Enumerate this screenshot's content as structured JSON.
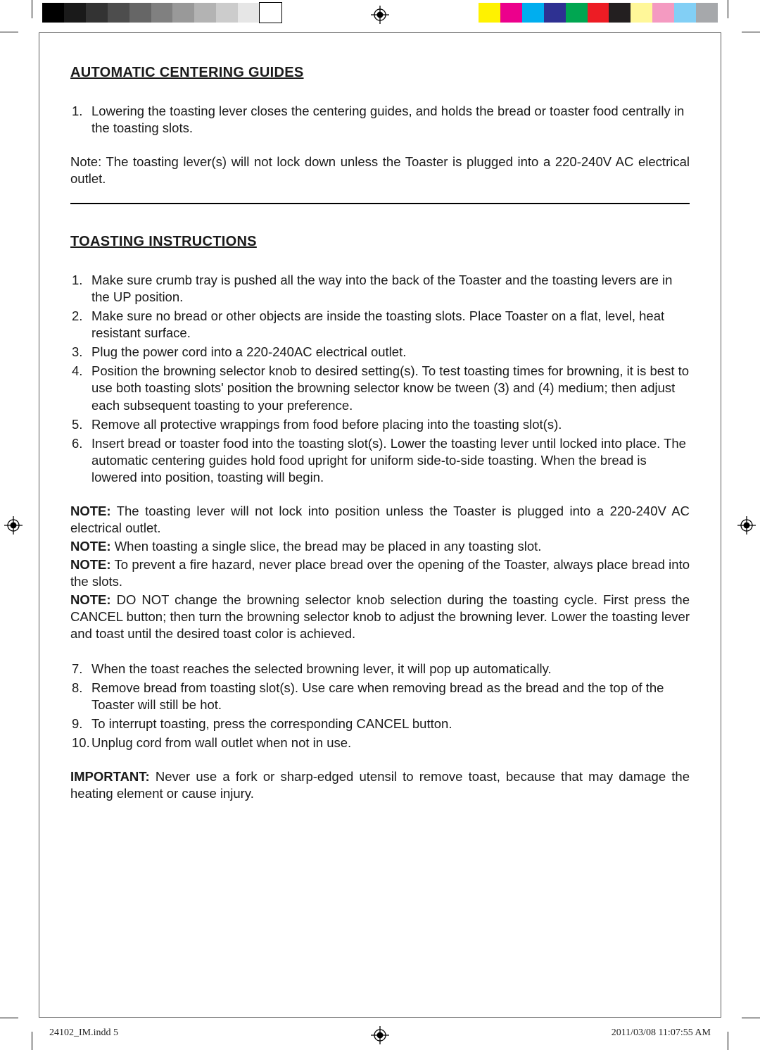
{
  "print_marks": {
    "grayscale_swatches": [
      "#000000",
      "#1a1a1a",
      "#333333",
      "#4d4d4d",
      "#666666",
      "#808080",
      "#999999",
      "#b3b3b3",
      "#cccccc",
      "#e6e6e6",
      "#ffffff"
    ],
    "grayscale_border": "#000000",
    "color_swatches": [
      "#fff200",
      "#ec008c",
      "#00aeef",
      "#2e3192",
      "#00a651",
      "#ed1c24",
      "#231f20",
      "#fff799",
      "#f49ac1",
      "#82cff5",
      "#a6a8ab"
    ]
  },
  "section1": {
    "title": "AUTOMATIC CENTERING GUIDES",
    "item1": "Lowering the toasting lever closes the centering guides, and holds the bread or toaster food centrally in the toasting slots.",
    "note": "Note: The toasting lever(s) will not lock down unless the Toaster is plugged into a 220-240V AC electrical outlet."
  },
  "section2": {
    "title": "TOASTING INSTRUCTIONS",
    "item1": "Make sure crumb tray is pushed all the way into the back of the Toaster and the toasting levers are in the UP position.",
    "item2": "Make sure no bread or other objects are inside the toasting slots. Place Toaster on a flat, level, heat resistant surface.",
    "item3": "Plug the power cord into a 220-240AC electrical outlet.",
    "item4": "Position the browning selector knob to desired setting(s). To test toasting times for browning, it is best to use both toasting slots' position the browning selector know be tween (3) and (4) medium; then adjust each subsequent toasting to your preference.",
    "item5": "Remove all protective wrappings from food before placing into the toasting slot(s).",
    "item6": "Insert bread or toaster food into the toasting slot(s). Lower the toasting lever until locked into place. The automatic centering guides hold food upright for uniform side-to-side toasting. When the bread is lowered into position, toasting will begin.",
    "note_label": "NOTE:",
    "note1": " The toasting lever will not lock into position unless the Toaster is plugged into a 220-240V AC electrical outlet.",
    "note2": " When toasting a single slice, the bread may be placed in any toasting slot.",
    "note3": " To prevent a fire hazard, never place bread over the opening of the Toaster, always place bread into the slots.",
    "note4": " DO NOT change the browning selector knob selection during the toasting cycle. First press the CANCEL button; then turn the browning selector knob to adjust the browning lever. Lower the toasting lever and toast until the desired toast color is achieved.",
    "item7": "When the toast reaches the selected browning lever, it will pop up automatically.",
    "item8": "Remove bread from toasting slot(s). Use care when removing bread as the bread and the top of the Toaster will still be hot.",
    "item9": "To interrupt toasting, press the corresponding CANCEL button.",
    "item10": "Unplug cord from wall outlet when not in use.",
    "important_label": "IMPORTANT:",
    "important_text": " Never use a fork or sharp-edged utensil to remove toast, because that may damage the heating element or cause injury."
  },
  "footer": {
    "file": "24102_IM.indd   5",
    "timestamp": "2011/03/08   11:07:55 AM"
  }
}
